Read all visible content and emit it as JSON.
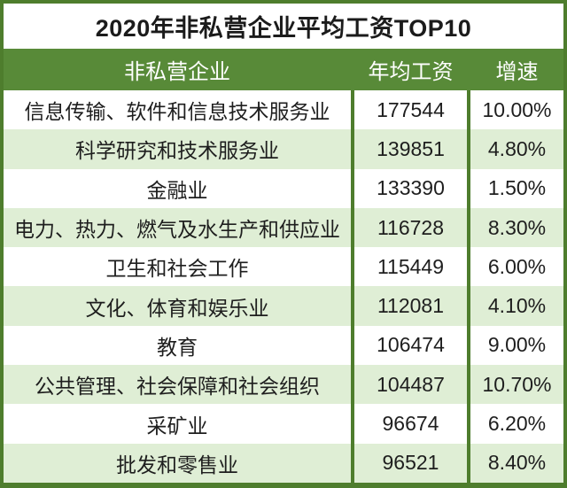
{
  "title": "2020年非私营企业平均工资TOP10",
  "colors": {
    "border_green": "#4e7d2d",
    "header_green": "#588a38",
    "row_stripe_green": "#dfeed5",
    "row_white": "#ffffff",
    "header_text": "#ffffff",
    "body_text": "#1e1e1e"
  },
  "chart_data": {
    "type": "table",
    "title": "2020年非私营企业平均工资TOP10",
    "columns": [
      "非私营企业",
      "年均工资",
      "增速"
    ],
    "rows": [
      {
        "industry": "信息传输、软件和信息技术服务业",
        "wage": "177544",
        "growth": "10.00%"
      },
      {
        "industry": "科学研究和技术服务业",
        "wage": "139851",
        "growth": "4.80%"
      },
      {
        "industry": "金融业",
        "wage": "133390",
        "growth": "1.50%"
      },
      {
        "industry": "电力、热力、燃气及水生产和供应业",
        "wage": "116728",
        "growth": "8.30%"
      },
      {
        "industry": "卫生和社会工作",
        "wage": "115449",
        "growth": "6.00%"
      },
      {
        "industry": "文化、体育和娱乐业",
        "wage": "112081",
        "growth": "4.10%"
      },
      {
        "industry": "教育",
        "wage": "106474",
        "growth": "9.00%"
      },
      {
        "industry": "公共管理、社会保障和社会组织",
        "wage": "104487",
        "growth": "10.70%"
      },
      {
        "industry": "采矿业",
        "wage": "96674",
        "growth": "6.20%"
      },
      {
        "industry": "批发和零售业",
        "wage": "96521",
        "growth": "8.40%"
      }
    ]
  }
}
